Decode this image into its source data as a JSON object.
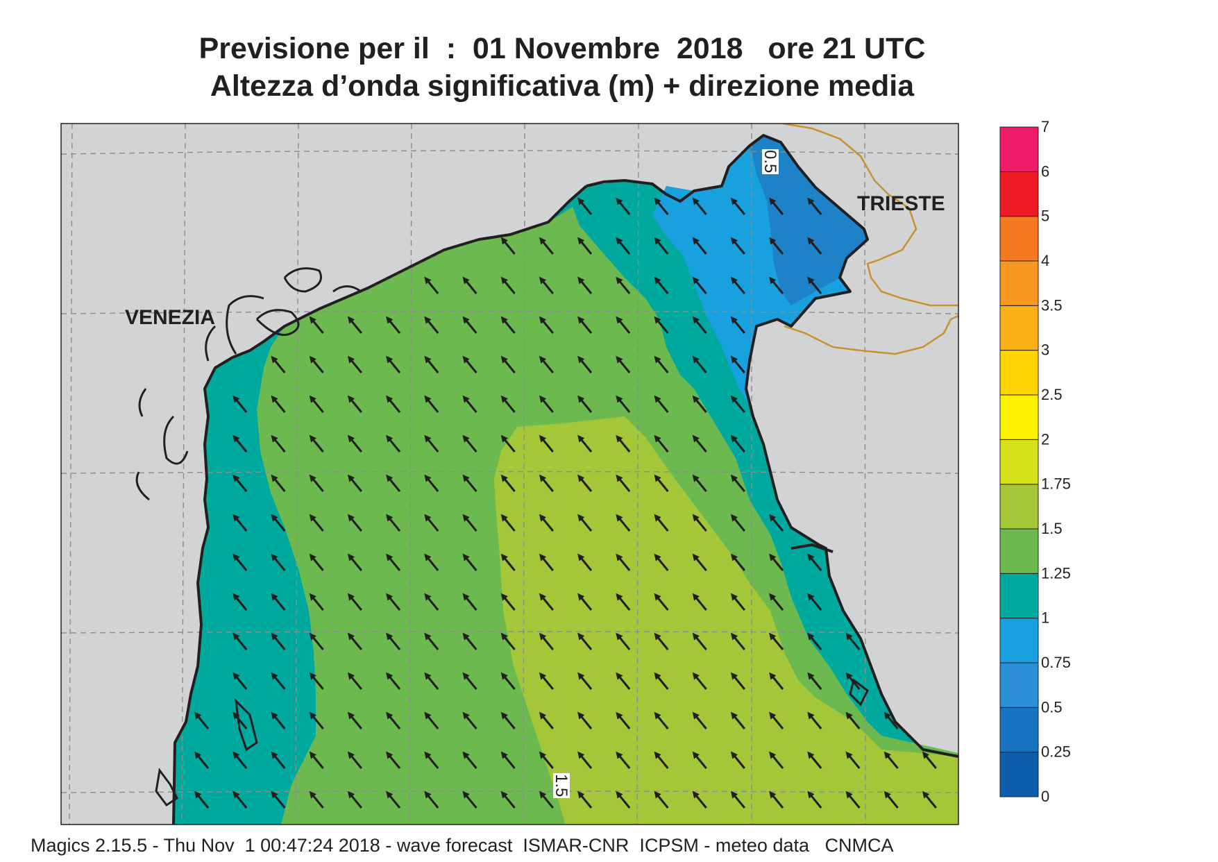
{
  "title": {
    "line1": "Previsione per il  :  01 Novembre  2018   ore 21 UTC",
    "line2": "Altezza d’onda significativa (m) + direzione media"
  },
  "map": {
    "cities": [
      {
        "name": "VENEZIA"
      },
      {
        "name": "TRIESTE"
      }
    ],
    "contour_labels": [
      "0.5",
      "1.5"
    ],
    "land_color": "#d2d3d5",
    "coast_color": "#231f20",
    "border_color": "#c8912e",
    "arrow_direction": "north-west"
  },
  "legend": {
    "levels": [
      "0",
      "0.25",
      "0.5",
      "0.75",
      "1",
      "1.25",
      "1.5",
      "1.75",
      "2",
      "2.5",
      "3",
      "3.5",
      "4",
      "5",
      "6",
      "7"
    ],
    "colors": [
      "#0d5fab",
      "#1874c0",
      "#2a8fd4",
      "#18a0df",
      "#00a99d",
      "#6cb94f",
      "#a4c739",
      "#d5e11b",
      "#fff200",
      "#ffd400",
      "#fbb017",
      "#f99820",
      "#f47920",
      "#ed1c24",
      "#ef1c6a"
    ]
  },
  "footer": "Magics 2.15.5 - Thu Nov  1 00:47:24 2018 - wave forecast  ISMAR-CNR  ICPSM - meteo data   CNMCA"
}
